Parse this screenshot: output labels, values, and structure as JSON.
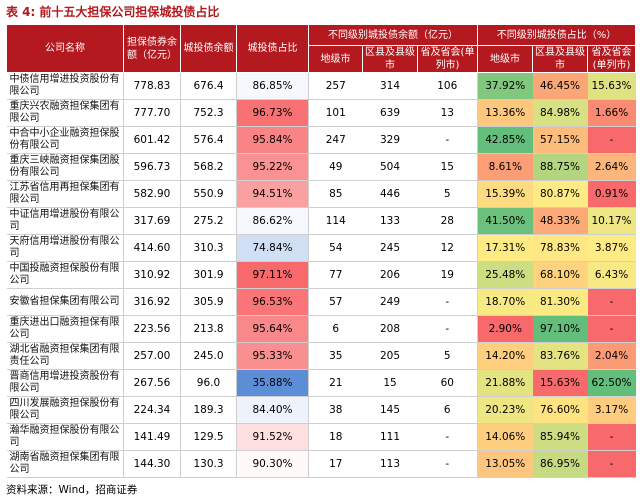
{
  "table_title": {
    "label": "表 4:",
    "text": "前十五大担保公司担保城投债占比"
  },
  "headers": {
    "company": "公司名称",
    "guarantee_balance": "担保债券余额（亿元）",
    "chengtou_balance": "城投债余额",
    "chengtou_share": "城投债占比",
    "group_balance": "不同级别城投债余额（亿元）",
    "group_share": "不同级别城投债占比（%）",
    "sub_balance": [
      "地级市",
      "区县及县级市",
      "省及省会(单列市)"
    ],
    "sub_share": [
      "地级市",
      "区县及县级市",
      "省及省会(单列市)"
    ]
  },
  "rows": [
    {
      "name": "中债信用增进投资股份有限公司",
      "guarantee": "778.83",
      "chengtou": "676.4",
      "share": "86.85%",
      "city": "257",
      "county": "314",
      "province": "106",
      "city_pct": "37.92%",
      "county_pct": "46.45%",
      "province_pct": "15.63%"
    },
    {
      "name": "重庆兴农融资担保集团有限公司",
      "guarantee": "777.70",
      "chengtou": "752.3",
      "share": "96.73%",
      "city": "101",
      "county": "639",
      "province": "13",
      "city_pct": "13.36%",
      "county_pct": "84.98%",
      "province_pct": "1.66%"
    },
    {
      "name": "中合中小企业融资担保股份有限公司",
      "guarantee": "601.42",
      "chengtou": "576.4",
      "share": "95.84%",
      "city": "247",
      "county": "329",
      "province": "-",
      "city_pct": "42.85%",
      "county_pct": "57.15%",
      "province_pct": "-"
    },
    {
      "name": "重庆三峡融资担保集团股份有限公司",
      "guarantee": "596.73",
      "chengtou": "568.2",
      "share": "95.22%",
      "city": "49",
      "county": "504",
      "province": "15",
      "city_pct": "8.61%",
      "county_pct": "88.75%",
      "province_pct": "2.64%"
    },
    {
      "name": "江苏省信用再担保集团有限公司",
      "guarantee": "582.90",
      "chengtou": "550.9",
      "share": "94.51%",
      "city": "85",
      "county": "446",
      "province": "5",
      "city_pct": "15.39%",
      "county_pct": "80.87%",
      "province_pct": "0.91%"
    },
    {
      "name": "中证信用增进股份有限公司",
      "guarantee": "317.69",
      "chengtou": "275.2",
      "share": "86.62%",
      "city": "114",
      "county": "133",
      "province": "28",
      "city_pct": "41.50%",
      "county_pct": "48.33%",
      "province_pct": "10.17%"
    },
    {
      "name": "天府信用增进股份有限公司",
      "guarantee": "414.60",
      "chengtou": "310.3",
      "share": "74.84%",
      "city": "54",
      "county": "245",
      "province": "12",
      "city_pct": "17.31%",
      "county_pct": "78.83%",
      "province_pct": "3.87%"
    },
    {
      "name": "中国投融资担保股份有限公司",
      "guarantee": "310.92",
      "chengtou": "301.9",
      "share": "97.11%",
      "city": "77",
      "county": "206",
      "province": "19",
      "city_pct": "25.48%",
      "county_pct": "68.10%",
      "province_pct": "6.43%"
    },
    {
      "name": "安徽省担保集团有限公司",
      "guarantee": "316.92",
      "chengtou": "305.9",
      "share": "96.53%",
      "city": "57",
      "county": "249",
      "province": "-",
      "city_pct": "18.70%",
      "county_pct": "81.30%",
      "province_pct": "-"
    },
    {
      "name": "重庆进出口融资担保有限公司",
      "guarantee": "223.56",
      "chengtou": "213.8",
      "share": "95.64%",
      "city": "6",
      "county": "208",
      "province": "-",
      "city_pct": "2.90%",
      "county_pct": "97.10%",
      "province_pct": "-"
    },
    {
      "name": "湖北省融资担保集团有限责任公司",
      "guarantee": "257.00",
      "chengtou": "245.0",
      "share": "95.33%",
      "city": "35",
      "county": "205",
      "province": "5",
      "city_pct": "14.20%",
      "county_pct": "83.76%",
      "province_pct": "2.04%"
    },
    {
      "name": "晋商信用增进投资股份有限公司",
      "guarantee": "267.56",
      "chengtou": "96.0",
      "share": "35.88%",
      "city": "21",
      "county": "15",
      "province": "60",
      "city_pct": "21.88%",
      "county_pct": "15.63%",
      "province_pct": "62.50%"
    },
    {
      "name": "四川发展融资担保股份有限公司",
      "guarantee": "224.34",
      "chengtou": "189.3",
      "share": "84.40%",
      "city": "38",
      "county": "145",
      "province": "6",
      "city_pct": "20.23%",
      "county_pct": "76.60%",
      "province_pct": "3.17%"
    },
    {
      "name": "瀚华融资担保股份有限公司",
      "guarantee": "141.49",
      "chengtou": "129.5",
      "share": "91.52%",
      "city": "18",
      "county": "111",
      "province": "-",
      "city_pct": "14.06%",
      "county_pct": "85.94%",
      "province_pct": "-"
    },
    {
      "name": "湖南省融资担保集团有限公司",
      "guarantee": "144.30",
      "chengtou": "130.3",
      "share": "90.30%",
      "city": "17",
      "county": "113",
      "province": "-",
      "city_pct": "13.05%",
      "county_pct": "86.95%",
      "province_pct": "-"
    }
  ],
  "source": "资料来源：Wind，招商证券",
  "colors": {
    "header_bg": "#b3191e",
    "title": "#b3191e",
    "share_low": "#5b8ed6",
    "share_mid": "#ffffff",
    "share_high": "#f8696b",
    "scale_red": "#f8696b",
    "scale_yellow": "#ffeb84",
    "scale_green": "#63be7b"
  }
}
